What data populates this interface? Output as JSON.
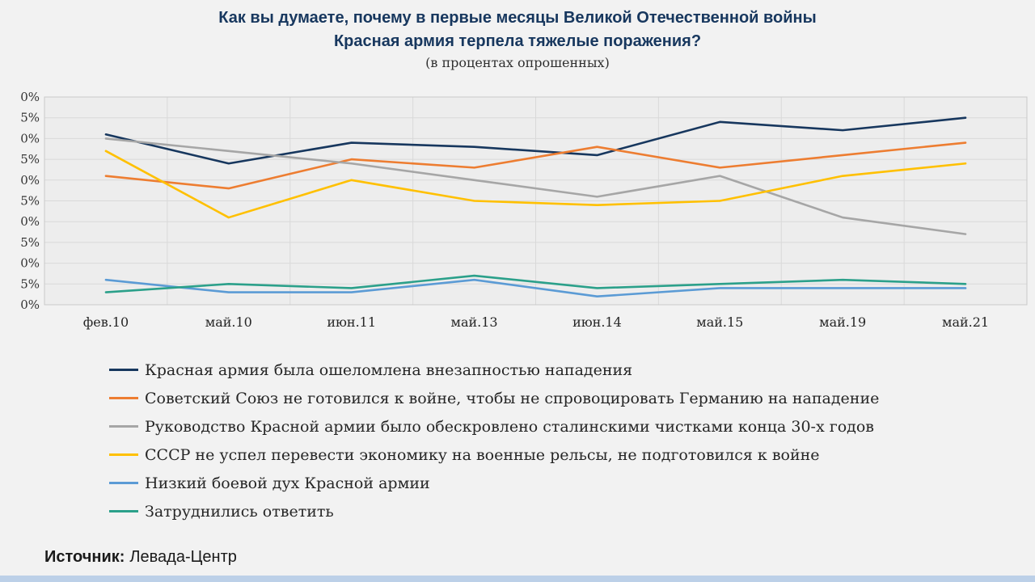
{
  "title_line1": "Как вы думаете, почему в первые месяцы Великой Отечественной войны",
  "title_line2": "Красная армия терпела тяжелые поражения?",
  "subtitle": "(в процентах опрошенных)",
  "source": {
    "label": "Источник:",
    "value": "Левада-Центр"
  },
  "colors": {
    "title": "#17375e",
    "page_bg": "#f2f2f2",
    "plot_bg": "#ededed",
    "gridline": "#d9d9d9",
    "footer_accent": "#bcd0e8"
  },
  "chart_data": {
    "type": "line",
    "title": "Как вы думаете, почему в первые месяцы Великой Отечественной войны Красная армия терпела тяжелые поражения?",
    "subtitle": "(в процентах опрошенных)",
    "categories": [
      "фев.10",
      "май.10",
      "июн.11",
      "май.13",
      "июн.14",
      "май.15",
      "май.19",
      "май.21"
    ],
    "series": [
      {
        "name": "Красная армия была ошеломлена внезапностью нападения",
        "color": "#17375e",
        "values": [
          41,
          34,
          39,
          38,
          36,
          44,
          42,
          45
        ]
      },
      {
        "name": "Советский Союз не готовился к войне, чтобы не спровоцировать Германию на нападение",
        "color": "#ed7d31",
        "values": [
          31,
          28,
          35,
          33,
          38,
          33,
          36,
          39
        ]
      },
      {
        "name": "Руководство Красной армии было обескровлено сталинскими чистками конца 30-х годов",
        "color": "#a6a6a6",
        "values": [
          40,
          37,
          34,
          30,
          26,
          31,
          21,
          17
        ]
      },
      {
        "name": "СССР не успел перевести экономику на военные рельсы, не подготовился к войне",
        "color": "#ffc000",
        "values": [
          37,
          21,
          30,
          25,
          24,
          25,
          31,
          34
        ]
      },
      {
        "name": "Низкий боевой дух Красной армии",
        "color": "#5b9bd5",
        "values": [
          6,
          3,
          3,
          6,
          2,
          4,
          4,
          4
        ]
      },
      {
        "name": "Затруднились ответить",
        "color": "#2ba08a",
        "values": [
          3,
          5,
          4,
          7,
          4,
          5,
          6,
          5
        ]
      }
    ],
    "ylim": [
      0,
      50
    ],
    "ytick_step": 5,
    "ytick_suffix": "%",
    "grid": true,
    "legend_position": "bottom-left"
  }
}
